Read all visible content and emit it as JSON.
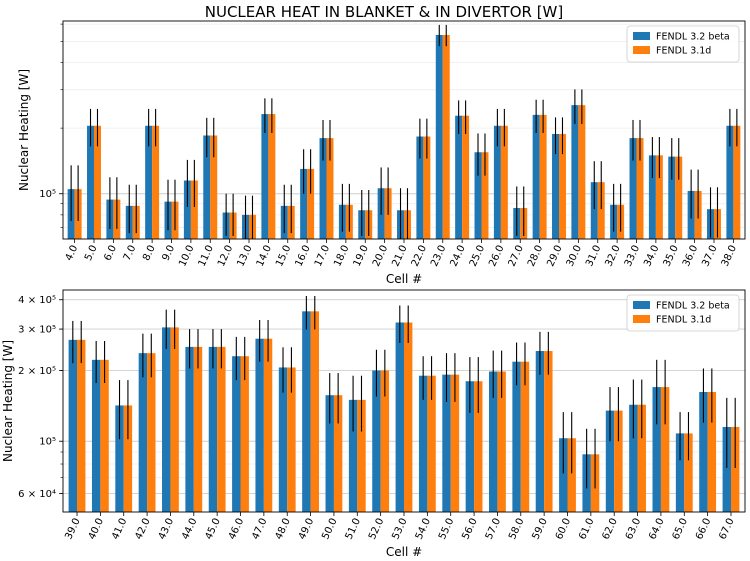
{
  "figure": {
    "title": "NUCLEAR HEAT IN BLANKET & IN DIVERTOR [W]"
  },
  "colors": {
    "series1": "#1f77b4",
    "series2": "#ff7f0e",
    "error": "#000000",
    "grid": "#dcdcdc"
  },
  "chart_data": [
    {
      "type": "bar",
      "title": "NUCLEAR HEAT IN BLANKET & IN DIVERTOR [W]",
      "xlabel": "Cell #",
      "ylabel": "Nuclear Heating [W]",
      "yscale": "log",
      "ylim": [
        62000,
        620000
      ],
      "yticks": [
        {
          "value": 100000,
          "label": "10⁵"
        }
      ],
      "grid": true,
      "legend": "top-right",
      "error_bars": true,
      "categories": [
        "4.0",
        "5.0",
        "6.0",
        "7.0",
        "8.0",
        "9.0",
        "10.0",
        "11.0",
        "12.0",
        "13.0",
        "14.0",
        "15.0",
        "16.0",
        "17.0",
        "18.0",
        "19.0",
        "20.0",
        "21.0",
        "22.0",
        "23.0",
        "24.0",
        "25.0",
        "26.0",
        "27.0",
        "28.0",
        "29.0",
        "30.0",
        "31.0",
        "32.0",
        "33.0",
        "34.0",
        "35.0",
        "36.0",
        "37.0",
        "38.0"
      ],
      "series": [
        {
          "name": "FENDL 3.2 beta",
          "values": [
            105000,
            205000,
            94000,
            88000,
            205000,
            92000,
            115000,
            185000,
            82000,
            80000,
            232000,
            88000,
            130000,
            180000,
            89000,
            84000,
            106000,
            84000,
            183000,
            535000,
            228000,
            155000,
            205000,
            86000,
            230000,
            188000,
            255000,
            113000,
            89000,
            180000,
            150000,
            148000,
            103000,
            85000,
            205000
          ]
        },
        {
          "name": "FENDL 3.1d",
          "values": [
            105000,
            205000,
            94000,
            88000,
            205000,
            92000,
            115000,
            185000,
            82000,
            80000,
            232000,
            88000,
            130000,
            180000,
            89000,
            84000,
            106000,
            84000,
            183000,
            535000,
            228000,
            155000,
            205000,
            86000,
            230000,
            188000,
            255000,
            113000,
            89000,
            180000,
            150000,
            148000,
            103000,
            85000,
            205000
          ]
        }
      ],
      "errors": [
        30000,
        40000,
        25000,
        22000,
        40000,
        24000,
        28000,
        38000,
        18000,
        18000,
        42000,
        22000,
        30000,
        38000,
        22000,
        20000,
        26000,
        22000,
        38000,
        60000,
        40000,
        34000,
        40000,
        22000,
        40000,
        36000,
        46000,
        28000,
        22000,
        38000,
        32000,
        32000,
        26000,
        22000,
        40000
      ]
    },
    {
      "type": "bar",
      "title": "",
      "xlabel": "Cell #",
      "ylabel": "Nuclear Heating [W]",
      "yscale": "log",
      "ylim": [
        50000,
        440000
      ],
      "yticks": [
        {
          "value": 60000,
          "label": "6 × 10⁴"
        },
        {
          "value": 100000,
          "label": "10⁵"
        },
        {
          "value": 200000,
          "label": "2 × 10⁵"
        },
        {
          "value": 300000,
          "label": "3 × 10⁵"
        },
        {
          "value": 400000,
          "label": "4 × 10⁵"
        }
      ],
      "grid": true,
      "legend": "top-right",
      "error_bars": true,
      "categories": [
        "39.0",
        "40.0",
        "41.0",
        "42.0",
        "43.0",
        "44.0",
        "45.0",
        "46.0",
        "47.0",
        "48.0",
        "49.0",
        "50.0",
        "51.0",
        "52.0",
        "53.0",
        "54.0",
        "55.0",
        "56.0",
        "57.0",
        "58.0",
        "59.0",
        "60.0",
        "61.0",
        "62.0",
        "63.0",
        "64.0",
        "65.0",
        "66.0",
        "67.0"
      ],
      "series": [
        {
          "name": "FENDL 3.2 beta",
          "values": [
            270000,
            222000,
            142000,
            237000,
            305000,
            252000,
            252000,
            230000,
            273000,
            206000,
            357000,
            157000,
            150000,
            200000,
            320000,
            190000,
            192000,
            180000,
            198000,
            218000,
            242000,
            103000,
            88000,
            135000,
            143000,
            170000,
            108000,
            162000,
            115000
          ]
        },
        {
          "name": "FENDL 3.1d",
          "values": [
            270000,
            222000,
            142000,
            237000,
            305000,
            252000,
            252000,
            230000,
            273000,
            206000,
            357000,
            157000,
            150000,
            200000,
            320000,
            190000,
            192000,
            180000,
            198000,
            218000,
            242000,
            103000,
            88000,
            135000,
            143000,
            170000,
            108000,
            162000,
            115000
          ]
        }
      ],
      "errors": [
        55000,
        45000,
        40000,
        50000,
        58000,
        48000,
        48000,
        48000,
        55000,
        45000,
        58000,
        38000,
        40000,
        45000,
        58000,
        40000,
        45000,
        48000,
        45000,
        45000,
        50000,
        30000,
        25000,
        35000,
        40000,
        52000,
        25000,
        42000,
        38000
      ]
    }
  ]
}
